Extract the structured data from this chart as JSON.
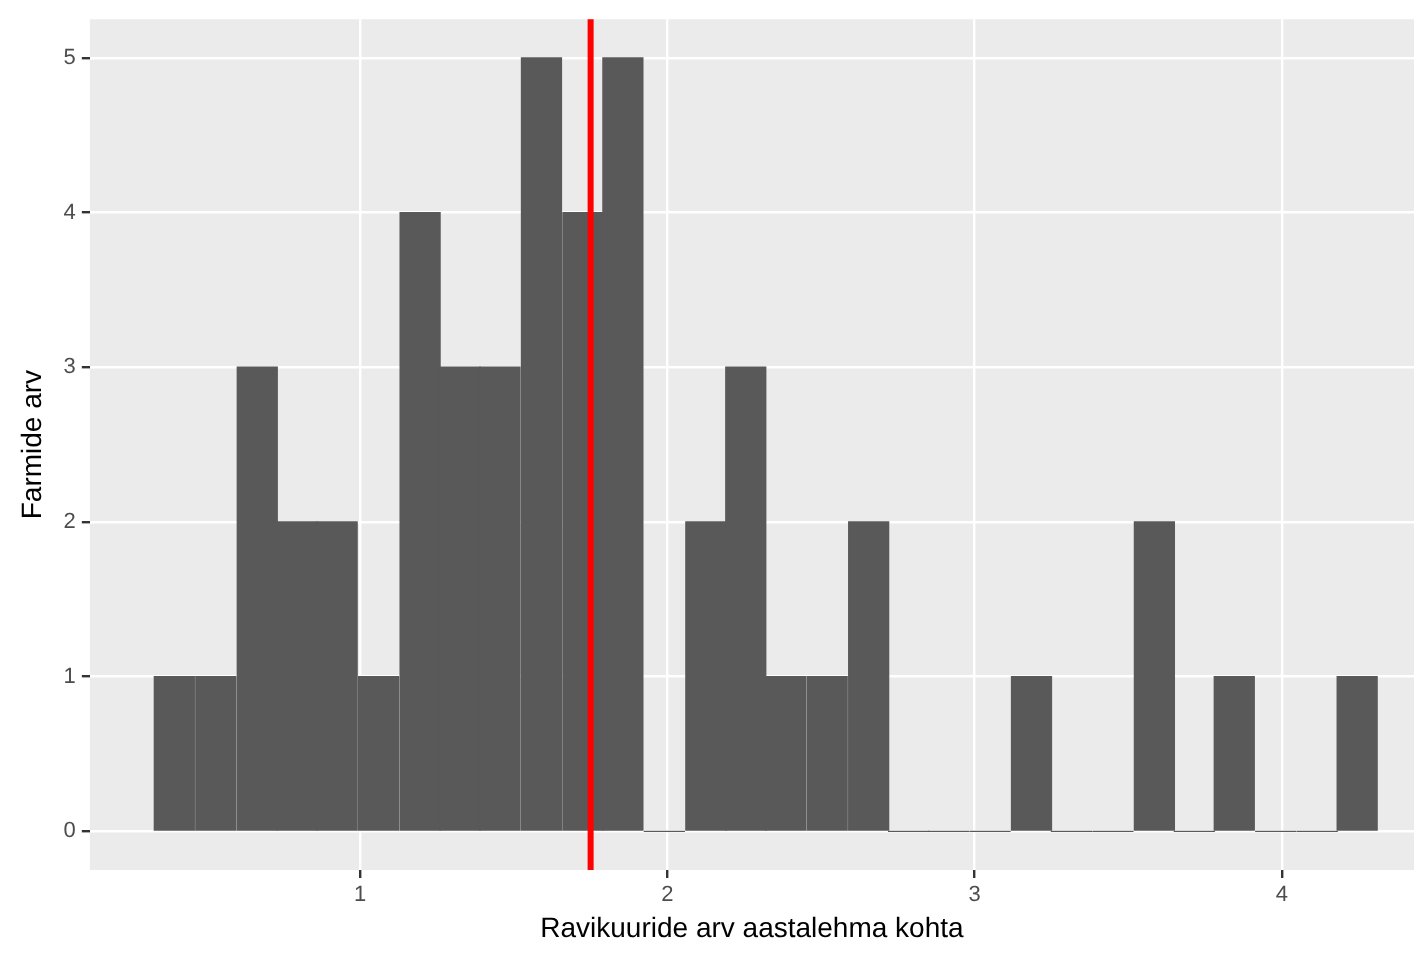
{
  "chart_data": {
    "type": "histogram",
    "xlabel": "Ravikuuride arv aastalehma kohta",
    "ylabel": "Farmide arv",
    "bins": [
      0.33,
      0.46,
      0.6,
      0.73,
      0.86,
      0.99,
      1.13,
      1.26,
      1.39,
      1.52,
      1.66,
      1.79,
      1.92,
      2.06,
      2.19,
      2.32,
      2.45,
      2.59,
      2.72,
      2.85,
      2.98,
      3.12,
      3.25,
      3.38,
      3.52,
      3.65,
      3.78,
      3.91,
      4.05,
      4.18,
      4.31
    ],
    "values": [
      1,
      1,
      3,
      2,
      2,
      1,
      4,
      3,
      3,
      5,
      4,
      5,
      0,
      2,
      3,
      1,
      1,
      2,
      0,
      0,
      0,
      1,
      0,
      0,
      2,
      0,
      1,
      0,
      0,
      1
    ],
    "color": "#595959",
    "xlim": [
      0.12,
      4.43
    ],
    "xticks": [
      1,
      2,
      3,
      4
    ],
    "ylim": [
      -0.25,
      5.25
    ],
    "yticks": [
      0,
      1,
      2,
      3,
      4,
      5
    ],
    "grid": true,
    "legend": false,
    "ref_lines": [
      {
        "axis": "x",
        "value": 1.75,
        "color": "#ff0000"
      }
    ]
  }
}
